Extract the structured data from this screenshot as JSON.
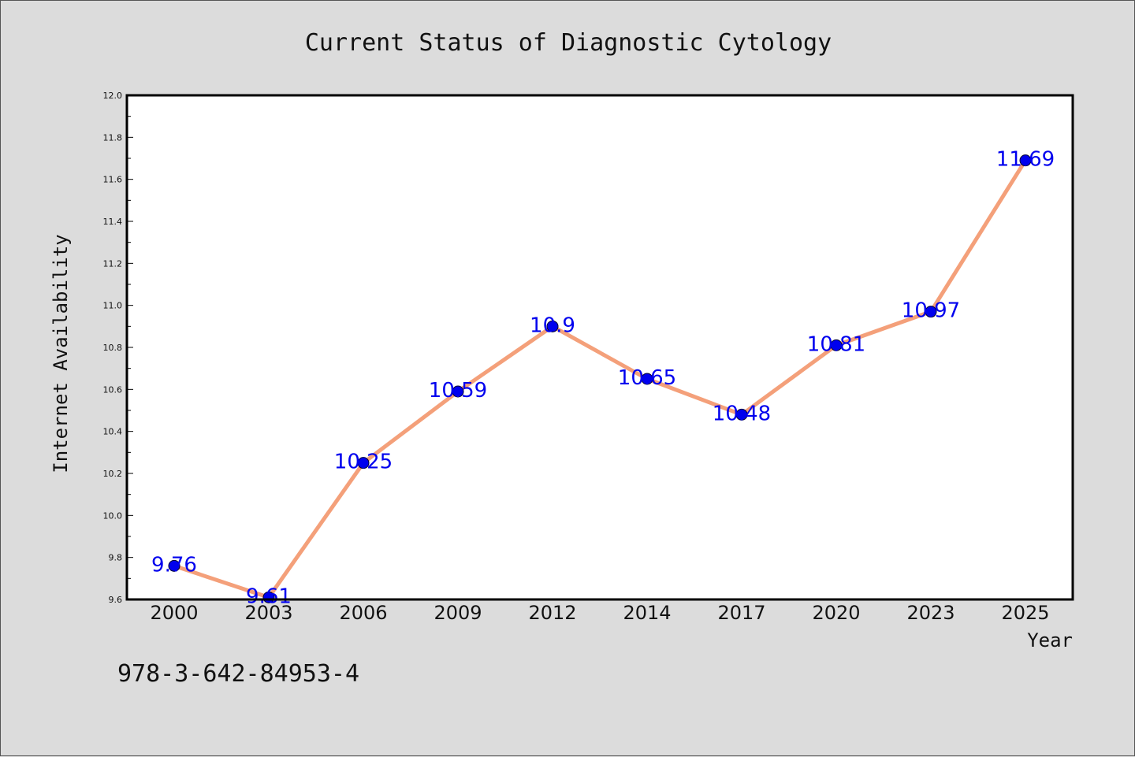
{
  "chart_data": {
    "type": "line",
    "title": "Current Status of Diagnostic Cytology",
    "xlabel": "Year",
    "ylabel": "Internet Availability",
    "categories": [
      "2000",
      "2003",
      "2006",
      "2009",
      "2012",
      "2014",
      "2017",
      "2020",
      "2023",
      "2025"
    ],
    "series": [
      {
        "values": [
          9.76,
          9.61,
          10.25,
          10.59,
          10.9,
          10.65,
          10.48,
          10.81,
          10.97,
          11.69
        ],
        "data_labels": [
          "9.76",
          "9.61",
          "10.25",
          "10.59",
          "10.9",
          "10.65",
          "10.48",
          "10.81",
          "10.97",
          "11.69"
        ]
      }
    ],
    "ylim": [
      9.6,
      12.0
    ],
    "yticks": [
      "9.6",
      "9.8",
      "10.0",
      "10.2",
      "10.4",
      "10.6",
      "10.8",
      "11.0",
      "11.2",
      "11.4",
      "11.6",
      "11.8",
      "12.0"
    ],
    "grid": false,
    "legend": "none",
    "colors": {
      "line": "#f4a07a",
      "marker": "#0000ee",
      "data_label": "#0000ee",
      "plot_background": "#ffffff",
      "figure_background": "#dcdcdc"
    }
  },
  "footer": {
    "isbn": "978-3-642-84953-4"
  }
}
